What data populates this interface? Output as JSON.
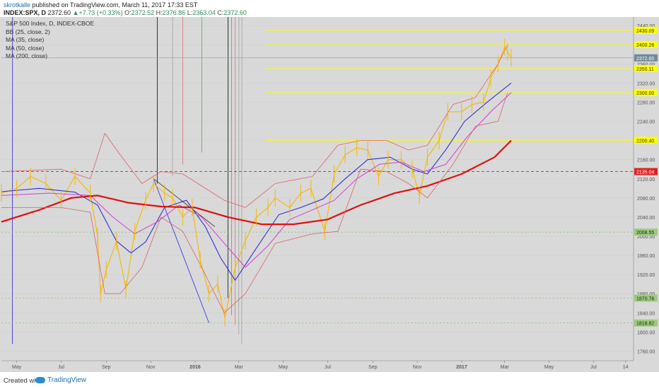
{
  "header": {
    "author": "skrotkalle",
    "published_text": "published on TradingView.com, March 11, 2017 17:33 EST",
    "symbol": "INDEX:SPX, D",
    "last": "2372.60",
    "change": "+7.73 (+0.33%)",
    "open_label": "O:",
    "open": "2372.52",
    "high_label": "H:",
    "high": "2376.86",
    "low_label": "L:",
    "low": "2363.04",
    "close_label": "C:",
    "close": "2372.60"
  },
  "legend": [
    "S&P 500 Index, D, INDEX-CBOE",
    "BB (25, close, 2)",
    "MA (35, close)",
    "MA (50, close)",
    "MA (200, close)"
  ],
  "footer": {
    "created_with": "Created with",
    "brand": "TradingView"
  },
  "colors": {
    "background": "#d9d9d9",
    "price": "#f5b800",
    "ma35": "#3030d0",
    "ma50": "#d040d0",
    "ma200": "#e01010",
    "bollinger": "#e06060",
    "channel_main": "#222222",
    "channel_blue": "#3a3ae0",
    "channel_green": "#2f9a2f",
    "channel_red": "#e05050",
    "channel_grey": "#909090",
    "level_yellow": "#ffff00",
    "level_red": "#e02020",
    "level_green": "#88c070"
  },
  "chart_data": {
    "type": "line",
    "title": "S&P 500 Index, D, INDEX-CBOE",
    "x_tick_labels": [
      "May",
      "Jul",
      "Sep",
      "Nov",
      "2016",
      "Mar",
      "May",
      "Jul",
      "Sep",
      "Nov",
      "2017",
      "Mar",
      "May",
      "Jul",
      "14"
    ],
    "y_tick_labels": [
      "1760.00",
      "1800.00",
      "1840.00",
      "1880.00",
      "1920.00",
      "1960.00",
      "2000.00",
      "2040.00",
      "2080.00",
      "2120.00",
      "2160.00",
      "2200.00",
      "2240.00",
      "2280.00",
      "2320.00",
      "2360.00",
      "2400.00",
      "2440.00"
    ],
    "ylim": [
      1740,
      2452
    ],
    "x_range": [
      "2015-04-10",
      "2017-08-25"
    ],
    "horizontal_levels": [
      {
        "value": 2430.09,
        "label": "2430.09",
        "style": "yellow"
      },
      {
        "value": 2400.26,
        "label": "2400.26",
        "style": "yellow"
      },
      {
        "value": 2372.6,
        "label": "2372.60",
        "style": "current"
      },
      {
        "value": 2350.11,
        "label": "2350.11",
        "style": "yellow"
      },
      {
        "value": 2300.0,
        "label": "2300.00",
        "style": "yellow"
      },
      {
        "value": 2200.4,
        "label": "2200.40",
        "style": "yellow"
      },
      {
        "value": 2135.04,
        "label": "2135.04",
        "style": "red"
      },
      {
        "value": 2008.55,
        "label": "2008.55",
        "style": "green"
      },
      {
        "value": 1870.76,
        "label": "1870.76",
        "style": "green"
      },
      {
        "value": 1818.82,
        "label": "1818.82",
        "style": "green"
      }
    ],
    "series": [
      {
        "name": "S&P 500 Index",
        "x": [
          "2015-04-10",
          "2015-05-01",
          "2015-05-20",
          "2015-06-10",
          "2015-07-01",
          "2015-07-20",
          "2015-08-10",
          "2015-08-20",
          "2015-08-24",
          "2015-09-01",
          "2015-09-15",
          "2015-09-28",
          "2015-10-10",
          "2015-10-25",
          "2015-11-05",
          "2015-11-20",
          "2015-12-01",
          "2015-12-15",
          "2015-12-28",
          "2016-01-08",
          "2016-01-20",
          "2016-02-01",
          "2016-02-11",
          "2016-02-25",
          "2016-03-10",
          "2016-03-25",
          "2016-04-10",
          "2016-04-20",
          "2016-05-10",
          "2016-05-25",
          "2016-06-08",
          "2016-06-27",
          "2016-07-10",
          "2016-07-25",
          "2016-08-10",
          "2016-08-25",
          "2016-09-09",
          "2016-09-22",
          "2016-10-10",
          "2016-10-25",
          "2016-11-04",
          "2016-11-15",
          "2016-12-01",
          "2016-12-13",
          "2017-01-01",
          "2017-01-15",
          "2017-01-31",
          "2017-02-10",
          "2017-02-20",
          "2017-03-01",
          "2017-03-05",
          "2017-03-10"
        ],
        "values": [
          2090,
          2100,
          2125,
          2110,
          2075,
          2125,
          2090,
          2000,
          1880,
          1930,
          1990,
          1890,
          2010,
          2075,
          2110,
          2090,
          2080,
          2040,
          2060,
          1950,
          1880,
          1900,
          1830,
          1935,
          1990,
          2040,
          2060,
          2080,
          2060,
          2090,
          2100,
          2010,
          2130,
          2170,
          2185,
          2180,
          2125,
          2160,
          2160,
          2140,
          2085,
          2165,
          2200,
          2260,
          2260,
          2275,
          2280,
          2330,
          2360,
          2395,
          2385,
          2372.6
        ]
      },
      {
        "name": "MA (35, close)",
        "x": [
          "2015-04-10",
          "2015-06-01",
          "2015-07-20",
          "2015-08-20",
          "2015-09-15",
          "2015-10-05",
          "2015-10-25",
          "2015-11-20",
          "2015-12-20",
          "2016-01-15",
          "2016-02-05",
          "2016-02-25",
          "2016-03-25",
          "2016-04-25",
          "2016-05-25",
          "2016-06-25",
          "2016-07-25",
          "2016-08-25",
          "2016-09-25",
          "2016-10-25",
          "2016-11-15",
          "2016-12-10",
          "2017-01-05",
          "2017-02-05",
          "2017-03-10"
        ],
        "values": [
          2093,
          2100,
          2092,
          2065,
          1990,
          1965,
          1988,
          2060,
          2075,
          2020,
          1955,
          1908,
          1975,
          2045,
          2060,
          2078,
          2120,
          2160,
          2165,
          2140,
          2130,
          2180,
          2240,
          2280,
          2320
        ]
      },
      {
        "name": "MA (50, close)",
        "x": [
          "2015-04-10",
          "2015-06-15",
          "2015-08-10",
          "2015-09-10",
          "2015-10-10",
          "2015-11-10",
          "2015-12-10",
          "2016-01-10",
          "2016-02-10",
          "2016-03-10",
          "2016-04-10",
          "2016-05-10",
          "2016-06-10",
          "2016-07-10",
          "2016-08-10",
          "2016-09-10",
          "2016-10-10",
          "2016-11-10",
          "2016-12-10",
          "2017-01-10",
          "2017-02-10",
          "2017-03-10"
        ],
        "values": [
          2085,
          2090,
          2085,
          2040,
          2005,
          2030,
          2065,
          2040,
          1985,
          1935,
          1980,
          2035,
          2055,
          2075,
          2120,
          2150,
          2155,
          2135,
          2150,
          2210,
          2260,
          2300
        ]
      },
      {
        "name": "MA (200, close)",
        "x": [
          "2015-04-10",
          "2015-06-01",
          "2015-07-15",
          "2015-08-20",
          "2015-10-01",
          "2015-11-15",
          "2016-01-01",
          "2016-02-15",
          "2016-04-01",
          "2016-05-15",
          "2016-07-01",
          "2016-08-15",
          "2016-10-01",
          "2016-11-15",
          "2017-01-01",
          "2017-02-15",
          "2017-03-10"
        ],
        "values": [
          2030,
          2055,
          2080,
          2085,
          2070,
          2062,
          2060,
          2040,
          2025,
          2025,
          2035,
          2065,
          2090,
          2105,
          2130,
          2165,
          2200
        ]
      },
      {
        "name": "BB upper",
        "x": [
          "2015-04-10",
          "2015-07-01",
          "2015-08-10",
          "2015-08-30",
          "2015-09-20",
          "2015-10-20",
          "2015-11-15",
          "2015-12-15",
          "2016-01-10",
          "2016-02-10",
          "2016-03-10",
          "2016-04-20",
          "2016-06-10",
          "2016-07-15",
          "2016-08-15",
          "2016-09-20",
          "2016-10-20",
          "2016-11-15",
          "2016-12-20",
          "2017-01-20",
          "2017-02-20",
          "2017-03-05"
        ],
        "values": [
          2135,
          2140,
          2120,
          2215,
          2170,
          2110,
          2135,
          2130,
          2105,
          2075,
          2060,
          2110,
          2125,
          2190,
          2200,
          2200,
          2180,
          2190,
          2275,
          2290,
          2360,
          2400
        ]
      },
      {
        "name": "BB lower",
        "x": [
          "2015-04-10",
          "2015-07-01",
          "2015-08-10",
          "2015-08-30",
          "2015-09-20",
          "2015-10-20",
          "2015-11-15",
          "2015-12-15",
          "2016-01-10",
          "2016-02-10",
          "2016-03-10",
          "2016-04-20",
          "2016-06-10",
          "2016-07-15",
          "2016-08-15",
          "2016-09-20",
          "2016-10-20",
          "2016-11-15",
          "2016-12-20",
          "2017-01-20",
          "2017-02-20",
          "2017-03-05"
        ],
        "values": [
          2060,
          2060,
          2050,
          1880,
          1880,
          1935,
          2040,
          2010,
          1935,
          1840,
          1880,
          1985,
          2005,
          2010,
          2140,
          2135,
          2110,
          2080,
          2150,
          2230,
          2240,
          2300
        ]
      }
    ]
  }
}
